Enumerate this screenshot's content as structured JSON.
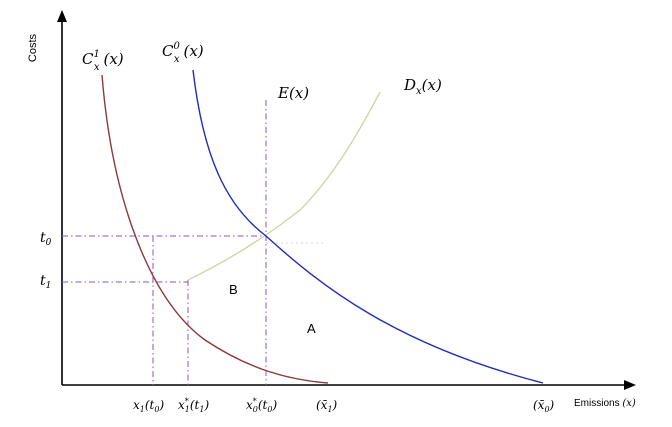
{
  "axes": {
    "y_label": "Costs",
    "x_label_text": "Emissions ",
    "x_label_var": "(x)"
  },
  "curves": {
    "c1": {
      "base": "C",
      "sup": "1",
      "sub": "x",
      "arg": "(x)",
      "color": "#8b3a3a"
    },
    "c0": {
      "base": "C",
      "sup": "0",
      "sub": "x",
      "arg": "(x)",
      "color": "#1f2fb8"
    },
    "e": {
      "label": "E(x)",
      "color": "#8a55c8"
    },
    "d": {
      "base": "D",
      "sub": "x",
      "arg": "(x)",
      "color": "#cfd6a8"
    }
  },
  "y_ticks": {
    "t0": {
      "base": "t",
      "sub": "0"
    },
    "t1": {
      "base": "t",
      "sub": "1"
    }
  },
  "x_ticks": {
    "x1t0": {
      "base": "x",
      "sub": "1",
      "arg": "(t",
      "argsub": "0",
      "close": ")"
    },
    "x1st1": {
      "base": "x",
      "sub": "1",
      "sup": "*",
      "arg": "(t",
      "argsub": "1",
      "close": ")"
    },
    "x0st0": {
      "base": "x",
      "sub": "0",
      "sup": "*",
      "arg": "(t",
      "argsub": "0",
      "close": ")"
    },
    "xbar1": {
      "text": "(x̄",
      "sub": "1",
      "close": ")"
    },
    "xbar0": {
      "text": "(x̄",
      "sub": "0",
      "close": ")"
    }
  },
  "regions": {
    "a": "A",
    "b": "B"
  },
  "guide_color": "#8a55c8"
}
